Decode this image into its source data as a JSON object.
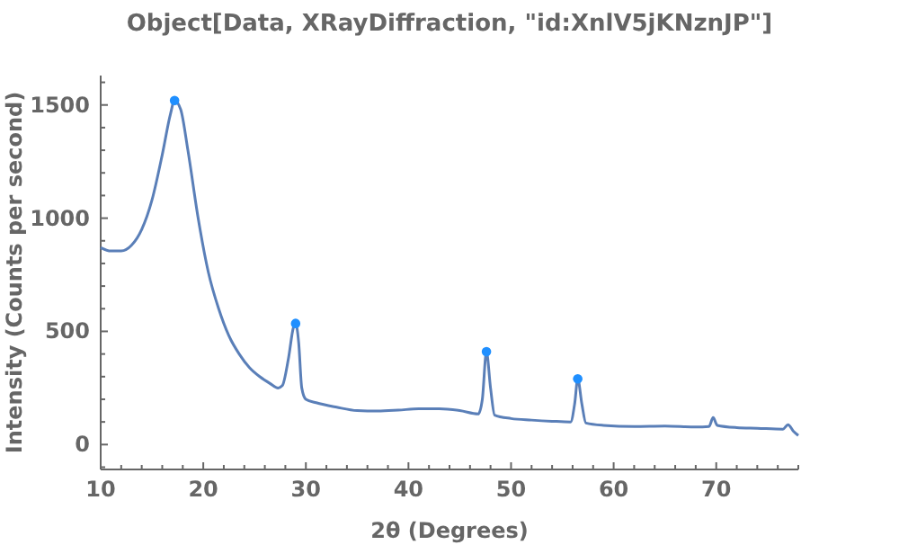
{
  "chart_data": {
    "type": "line",
    "title": "Object[Data, XRayDiffraction, \"id:XnlV5jKNznJP\"]",
    "xlabel": "2θ (Degrees)",
    "ylabel": "Intensity (Counts per second)",
    "xlim": [
      10,
      78
    ],
    "ylim": [
      -110,
      1630
    ],
    "xticks": [
      {
        "value": 10,
        "label": "10"
      },
      {
        "value": 12,
        "label": null
      },
      {
        "value": 14,
        "label": null
      },
      {
        "value": 16,
        "label": null
      },
      {
        "value": 18,
        "label": null
      },
      {
        "value": 20,
        "label": "20"
      },
      {
        "value": 22,
        "label": null
      },
      {
        "value": 24,
        "label": null
      },
      {
        "value": 26,
        "label": null
      },
      {
        "value": 28,
        "label": null
      },
      {
        "value": 30,
        "label": "30"
      },
      {
        "value": 32,
        "label": null
      },
      {
        "value": 34,
        "label": null
      },
      {
        "value": 36,
        "label": null
      },
      {
        "value": 38,
        "label": null
      },
      {
        "value": 40,
        "label": "40"
      },
      {
        "value": 42,
        "label": null
      },
      {
        "value": 44,
        "label": null
      },
      {
        "value": 46,
        "label": null
      },
      {
        "value": 48,
        "label": null
      },
      {
        "value": 50,
        "label": "50"
      },
      {
        "value": 52,
        "label": null
      },
      {
        "value": 54,
        "label": null
      },
      {
        "value": 56,
        "label": null
      },
      {
        "value": 58,
        "label": null
      },
      {
        "value": 60,
        "label": "60"
      },
      {
        "value": 62,
        "label": null
      },
      {
        "value": 64,
        "label": null
      },
      {
        "value": 66,
        "label": null
      },
      {
        "value": 68,
        "label": null
      },
      {
        "value": 70,
        "label": "70"
      },
      {
        "value": 72,
        "label": null
      },
      {
        "value": 74,
        "label": null
      },
      {
        "value": 76,
        "label": null
      },
      {
        "value": 78,
        "label": null
      }
    ],
    "yticks": [
      {
        "value": -100,
        "label": null
      },
      {
        "value": 0,
        "label": "0"
      },
      {
        "value": 100,
        "label": null
      },
      {
        "value": 200,
        "label": null
      },
      {
        "value": 300,
        "label": null
      },
      {
        "value": 400,
        "label": null
      },
      {
        "value": 500,
        "label": "500"
      },
      {
        "value": 600,
        "label": null
      },
      {
        "value": 700,
        "label": null
      },
      {
        "value": 800,
        "label": null
      },
      {
        "value": 900,
        "label": null
      },
      {
        "value": 1000,
        "label": "1000"
      },
      {
        "value": 1100,
        "label": null
      },
      {
        "value": 1200,
        "label": null
      },
      {
        "value": 1300,
        "label": null
      },
      {
        "value": 1400,
        "label": null
      },
      {
        "value": 1500,
        "label": "1500"
      },
      {
        "value": 1600,
        "label": null
      }
    ],
    "grid": false,
    "series": [
      {
        "color": "#5a7fb8",
        "marker": "none",
        "x": [
          10,
          11,
          12,
          13,
          14,
          15,
          16,
          16.8,
          17.2,
          17.8,
          18.5,
          19.5,
          20.5,
          21.5,
          22.5,
          23.5,
          24.5,
          25.5,
          26.5,
          27.3,
          27.7,
          28.3,
          28.8,
          29.0,
          29.3,
          29.6,
          30,
          31,
          33,
          35,
          37,
          39,
          41,
          43,
          45,
          46.8,
          47.2,
          47.6,
          48.0,
          48.4,
          50,
          52,
          54,
          55.8,
          56.2,
          56.5,
          56.9,
          57.3,
          59,
          62,
          65,
          68,
          69.3,
          69.7,
          70.1,
          72,
          74,
          76.5,
          77,
          77.5,
          78
        ],
        "values": [
          870,
          855,
          855,
          880,
          950,
          1080,
          1280,
          1460,
          1520,
          1480,
          1300,
          1000,
          760,
          600,
          480,
          400,
          340,
          300,
          270,
          250,
          260,
          380,
          520,
          535,
          450,
          250,
          200,
          185,
          165,
          150,
          148,
          152,
          158,
          158,
          150,
          135,
          200,
          410,
          250,
          130,
          115,
          108,
          103,
          100,
          180,
          290,
          180,
          95,
          85,
          80,
          82,
          78,
          80,
          119,
          85,
          75,
          72,
          68,
          88,
          60,
          40
        ]
      },
      {
        "type": "scatter",
        "color": "#1f8fff",
        "marker": "circle",
        "x": [
          17.2,
          29.0,
          47.6,
          56.5
        ],
        "values": [
          1520,
          535,
          410,
          290
        ]
      }
    ]
  }
}
